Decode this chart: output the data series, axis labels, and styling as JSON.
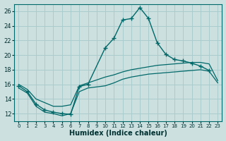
{
  "xlabel": "Humidex (Indice chaleur)",
  "ylabel": "",
  "bg_color": "#cce0e0",
  "grid_color": "#aacccc",
  "line_color": "#006868",
  "xlim": [
    -0.5,
    23.5
  ],
  "ylim": [
    11,
    27
  ],
  "xticks": [
    0,
    1,
    2,
    3,
    4,
    5,
    6,
    7,
    8,
    9,
    10,
    11,
    12,
    13,
    14,
    15,
    16,
    17,
    18,
    19,
    20,
    21,
    22,
    23
  ],
  "yticks": [
    12,
    14,
    16,
    18,
    20,
    22,
    24,
    26
  ],
  "main_line": {
    "x": [
      0,
      1,
      2,
      3,
      4,
      5,
      6,
      7,
      8,
      10,
      11,
      12,
      13,
      14,
      15,
      16,
      17,
      18,
      19,
      20,
      21,
      22
    ],
    "y": [
      15.8,
      15.0,
      13.3,
      12.5,
      12.2,
      12.0,
      11.9,
      15.7,
      16.0,
      21.0,
      22.3,
      24.8,
      25.0,
      26.5,
      25.0,
      21.7,
      20.1,
      19.4,
      19.2,
      18.9,
      18.5,
      17.9
    ]
  },
  "line2": {
    "x": [
      0,
      1,
      2,
      3,
      4,
      5,
      6,
      7,
      8,
      10,
      11,
      12,
      13,
      14,
      15,
      16,
      17,
      18,
      19,
      20,
      21,
      22,
      23
    ],
    "y": [
      16.0,
      15.3,
      14.0,
      13.5,
      13.0,
      13.0,
      13.2,
      15.8,
      16.2,
      17.0,
      17.3,
      17.7,
      18.0,
      18.2,
      18.4,
      18.6,
      18.7,
      18.8,
      18.9,
      19.0,
      19.0,
      18.8,
      16.5
    ]
  },
  "line3": {
    "x": [
      0,
      1,
      2,
      3,
      4,
      5,
      6,
      7,
      8,
      10,
      11,
      12,
      13,
      14,
      15,
      16,
      17,
      18,
      19,
      20,
      21,
      22,
      23
    ],
    "y": [
      15.5,
      14.8,
      13.0,
      12.2,
      12.0,
      11.7,
      12.0,
      15.0,
      15.5,
      15.8,
      16.2,
      16.7,
      17.0,
      17.2,
      17.4,
      17.5,
      17.6,
      17.7,
      17.8,
      17.9,
      18.0,
      17.8,
      16.2
    ]
  }
}
